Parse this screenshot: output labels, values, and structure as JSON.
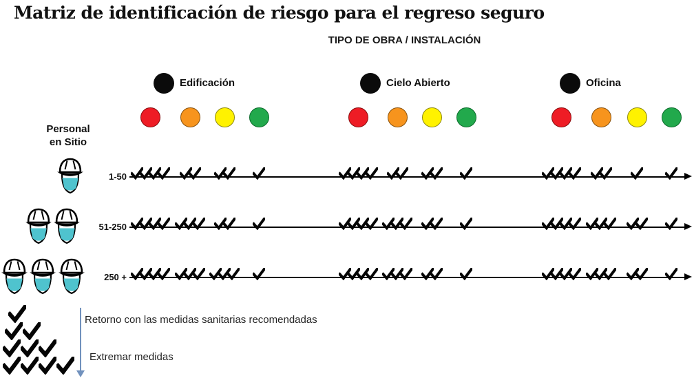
{
  "title": "Matriz de identificación de riesgo para el regreso seguro",
  "subtitle": "TIPO DE OBRA / INSTALACIÓN",
  "personal_label_line1": "Personal",
  "personal_label_line2": "en Sitio",
  "columns": [
    {
      "id": "edificacion",
      "label": "Edificación"
    },
    {
      "id": "cielo-abierto",
      "label": "Cielo Abierto"
    },
    {
      "id": "oficina",
      "label": "Oficina"
    }
  ],
  "column_marker_color": "#0b0b0b",
  "risk_levels": [
    {
      "name": "red",
      "fill": "#ee1c25",
      "border": "#8b0d0f"
    },
    {
      "name": "orange",
      "fill": "#f7941d",
      "border": "#8a5410"
    },
    {
      "name": "yellow",
      "fill": "#fff200",
      "border": "#8f8a13"
    },
    {
      "name": "green",
      "fill": "#22a94c",
      "border": "#0d6d2d"
    }
  ],
  "rows": [
    {
      "label": "1-50",
      "workers": 1,
      "checks": [
        [
          4,
          2,
          2,
          1
        ],
        [
          4,
          2,
          2,
          1
        ],
        [
          4,
          2,
          1,
          1
        ]
      ]
    },
    {
      "label": "51-250",
      "workers": 2,
      "checks": [
        [
          4,
          3,
          2,
          1
        ],
        [
          4,
          3,
          2,
          1
        ],
        [
          4,
          3,
          2,
          1
        ]
      ]
    },
    {
      "label": "250 +",
      "workers": 3,
      "checks": [
        [
          4,
          3,
          3,
          1
        ],
        [
          4,
          3,
          2,
          1
        ],
        [
          4,
          3,
          2,
          1
        ]
      ]
    }
  ],
  "check_color": "#050505",
  "mask_color": "#4fc3ce",
  "legend": {
    "cascade_counts": [
      1,
      2,
      3,
      4
    ],
    "arrow_color": "#7191bd",
    "entries": [
      "Retorno con las medidas sanitarias recomendadas",
      "Extremar medidas"
    ]
  }
}
